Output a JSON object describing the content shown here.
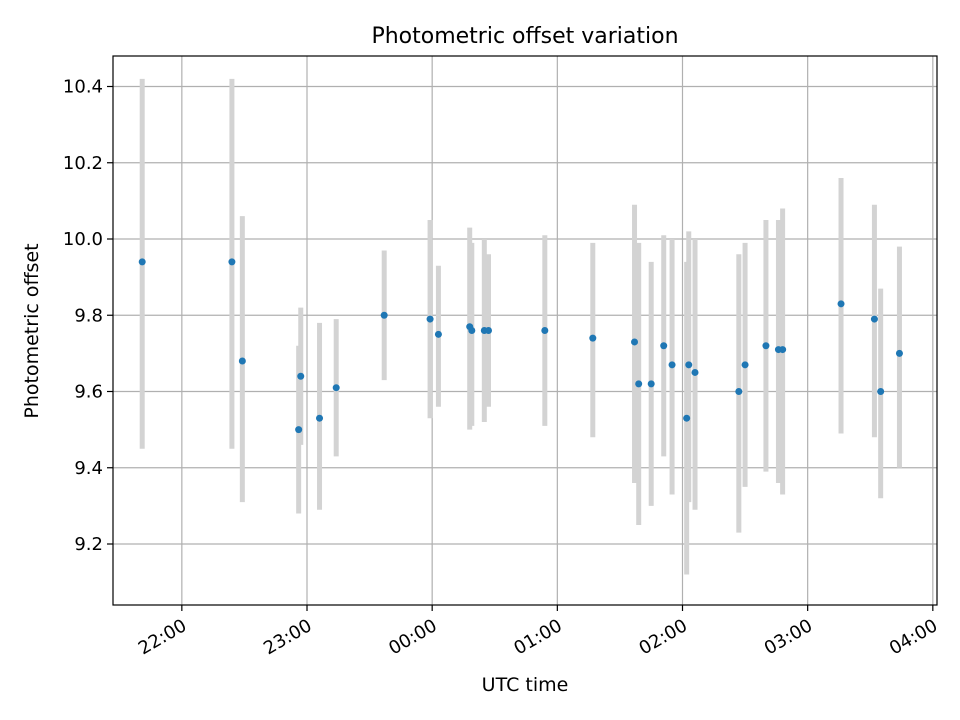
{
  "chart_data": {
    "type": "scatter",
    "title": "Photometric offset variation",
    "xlabel": "UTC time",
    "ylabel": "Photometric offset",
    "x_ticks": [
      "22:00",
      "23:00",
      "00:00",
      "01:00",
      "02:00",
      "03:00",
      "04:00"
    ],
    "y_ticks": [
      "9.2",
      "9.4",
      "9.6",
      "9.8",
      "10.0",
      "10.2",
      "10.4"
    ],
    "grid": true,
    "ylim": [
      9.04,
      10.48
    ],
    "xlim": [
      "21:27",
      "04:02"
    ],
    "point_color": "#1f77b4",
    "errorbar_color": "#d3d3d3",
    "points": [
      {
        "t": "21:41",
        "y": 9.94,
        "ylo": 9.45,
        "yhi": 10.42
      },
      {
        "t": "22:24",
        "y": 9.94,
        "ylo": 9.45,
        "yhi": 10.42
      },
      {
        "t": "22:29",
        "y": 9.68,
        "ylo": 9.31,
        "yhi": 10.06
      },
      {
        "t": "22:56",
        "y": 9.5,
        "ylo": 9.28,
        "yhi": 9.72
      },
      {
        "t": "22:57",
        "y": 9.64,
        "ylo": 9.46,
        "yhi": 9.82
      },
      {
        "t": "23:06",
        "y": 9.53,
        "ylo": 9.29,
        "yhi": 9.78
      },
      {
        "t": "23:14",
        "y": 9.61,
        "ylo": 9.43,
        "yhi": 9.79
      },
      {
        "t": "23:37",
        "y": 9.8,
        "ylo": 9.63,
        "yhi": 9.97
      },
      {
        "t": "23:59",
        "y": 9.79,
        "ylo": 9.53,
        "yhi": 10.05
      },
      {
        "t": "00:03",
        "y": 9.75,
        "ylo": 9.56,
        "yhi": 9.93
      },
      {
        "t": "00:18",
        "y": 9.77,
        "ylo": 9.5,
        "yhi": 10.03
      },
      {
        "t": "00:19",
        "y": 9.76,
        "ylo": 9.51,
        "yhi": 9.99
      },
      {
        "t": "00:25",
        "y": 9.76,
        "ylo": 9.52,
        "yhi": 10.0
      },
      {
        "t": "00:27",
        "y": 9.76,
        "ylo": 9.56,
        "yhi": 9.96
      },
      {
        "t": "00:54",
        "y": 9.76,
        "ylo": 9.51,
        "yhi": 10.01
      },
      {
        "t": "01:17",
        "y": 9.74,
        "ylo": 9.48,
        "yhi": 9.99
      },
      {
        "t": "01:37",
        "y": 9.73,
        "ylo": 9.36,
        "yhi": 10.09
      },
      {
        "t": "01:39",
        "y": 9.62,
        "ylo": 9.25,
        "yhi": 9.99
      },
      {
        "t": "01:45",
        "y": 9.62,
        "ylo": 9.3,
        "yhi": 9.94
      },
      {
        "t": "01:51",
        "y": 9.72,
        "ylo": 9.43,
        "yhi": 10.01
      },
      {
        "t": "01:55",
        "y": 9.67,
        "ylo": 9.33,
        "yhi": 10.0
      },
      {
        "t": "02:02",
        "y": 9.53,
        "ylo": 9.12,
        "yhi": 9.94
      },
      {
        "t": "02:03",
        "y": 9.67,
        "ylo": 9.31,
        "yhi": 10.02
      },
      {
        "t": "02:06",
        "y": 9.65,
        "ylo": 9.29,
        "yhi": 10.0
      },
      {
        "t": "02:27",
        "y": 9.6,
        "ylo": 9.23,
        "yhi": 9.96
      },
      {
        "t": "02:30",
        "y": 9.67,
        "ylo": 9.35,
        "yhi": 9.99
      },
      {
        "t": "02:40",
        "y": 9.72,
        "ylo": 9.39,
        "yhi": 10.05
      },
      {
        "t": "02:46",
        "y": 9.71,
        "ylo": 9.36,
        "yhi": 10.05
      },
      {
        "t": "02:48",
        "y": 9.71,
        "ylo": 9.33,
        "yhi": 10.08
      },
      {
        "t": "03:16",
        "y": 9.83,
        "ylo": 9.49,
        "yhi": 10.16
      },
      {
        "t": "03:32",
        "y": 9.79,
        "ylo": 9.48,
        "yhi": 10.09
      },
      {
        "t": "03:35",
        "y": 9.6,
        "ylo": 9.32,
        "yhi": 9.87
      },
      {
        "t": "03:44",
        "y": 9.7,
        "ylo": 9.4,
        "yhi": 9.98
      }
    ]
  }
}
